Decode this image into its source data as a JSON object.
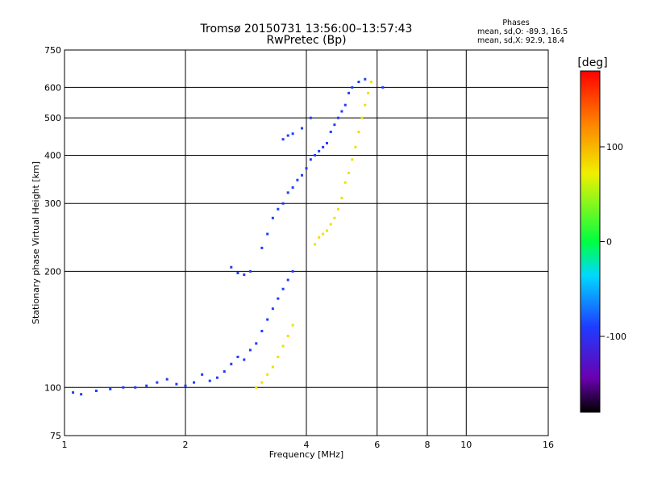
{
  "chart_data": {
    "type": "scatter",
    "title": "Tromsø 20150731 13:56:00–13:57:43",
    "subtitle": "RwPretec (Bp)",
    "xlabel": "Frequency [MHz]",
    "ylabel": "Stationary phase Virtual Height [km]",
    "x_scale": "log",
    "y_scale": "log",
    "xlim": [
      1,
      16
    ],
    "ylim": [
      75,
      750
    ],
    "x_ticks": [
      1,
      2,
      4,
      6,
      8,
      10,
      16
    ],
    "y_ticks": [
      75,
      100,
      200,
      300,
      400,
      500,
      600,
      750
    ],
    "grid": true,
    "legend": {
      "title": "Phases",
      "line1": "mean, sd,O: -89.3, 16.5",
      "line2": "mean, sd,X:  92.9, 18.4"
    },
    "colorbar": {
      "label": "[deg]",
      "range": [
        -180,
        180
      ],
      "ticks": [
        100,
        0,
        -100
      ]
    },
    "series": [
      {
        "name": "O",
        "phase_color": "#1e3cff",
        "points": [
          [
            1.05,
            97
          ],
          [
            1.1,
            96
          ],
          [
            1.2,
            98
          ],
          [
            1.3,
            99
          ],
          [
            1.4,
            100
          ],
          [
            1.5,
            100
          ],
          [
            1.6,
            101
          ],
          [
            1.7,
            103
          ],
          [
            1.8,
            105
          ],
          [
            1.9,
            102
          ],
          [
            2.0,
            101
          ],
          [
            2.1,
            103
          ],
          [
            2.2,
            108
          ],
          [
            2.3,
            104
          ],
          [
            2.4,
            106
          ],
          [
            2.5,
            110
          ],
          [
            2.6,
            115
          ],
          [
            2.7,
            120
          ],
          [
            2.8,
            118
          ],
          [
            2.9,
            125
          ],
          [
            3.0,
            130
          ],
          [
            3.1,
            140
          ],
          [
            3.2,
            150
          ],
          [
            3.3,
            160
          ],
          [
            3.4,
            170
          ],
          [
            3.5,
            180
          ],
          [
            3.6,
            190
          ],
          [
            3.7,
            200
          ],
          [
            2.6,
            205
          ],
          [
            2.7,
            198
          ],
          [
            2.8,
            196
          ],
          [
            2.9,
            200
          ],
          [
            3.1,
            230
          ],
          [
            3.2,
            250
          ],
          [
            3.3,
            275
          ],
          [
            3.4,
            290
          ],
          [
            3.5,
            300
          ],
          [
            3.6,
            320
          ],
          [
            3.7,
            330
          ],
          [
            3.8,
            345
          ],
          [
            3.9,
            355
          ],
          [
            4.0,
            370
          ],
          [
            4.1,
            390
          ],
          [
            4.2,
            400
          ],
          [
            4.3,
            410
          ],
          [
            4.4,
            420
          ],
          [
            4.5,
            430
          ],
          [
            4.6,
            460
          ],
          [
            4.7,
            480
          ],
          [
            4.8,
            500
          ],
          [
            4.9,
            520
          ],
          [
            5.0,
            540
          ],
          [
            5.1,
            580
          ],
          [
            5.2,
            600
          ],
          [
            5.4,
            620
          ],
          [
            5.6,
            630
          ],
          [
            3.5,
            440
          ],
          [
            3.6,
            450
          ],
          [
            3.7,
            455
          ],
          [
            3.9,
            470
          ],
          [
            4.1,
            500
          ],
          [
            6.2,
            600
          ]
        ]
      },
      {
        "name": "X",
        "phase_color": "#f0e000",
        "points": [
          [
            3.0,
            100
          ],
          [
            3.1,
            103
          ],
          [
            3.2,
            108
          ],
          [
            3.3,
            113
          ],
          [
            3.4,
            120
          ],
          [
            3.5,
            128
          ],
          [
            3.6,
            136
          ],
          [
            3.7,
            145
          ],
          [
            4.2,
            235
          ],
          [
            4.3,
            245
          ],
          [
            4.4,
            250
          ],
          [
            4.5,
            255
          ],
          [
            4.6,
            265
          ],
          [
            4.7,
            275
          ],
          [
            4.8,
            290
          ],
          [
            4.9,
            310
          ],
          [
            5.0,
            340
          ],
          [
            5.1,
            360
          ],
          [
            5.2,
            390
          ],
          [
            5.3,
            420
          ],
          [
            5.4,
            460
          ],
          [
            5.5,
            500
          ],
          [
            5.6,
            540
          ],
          [
            5.7,
            580
          ],
          [
            5.8,
            620
          ]
        ]
      }
    ]
  }
}
